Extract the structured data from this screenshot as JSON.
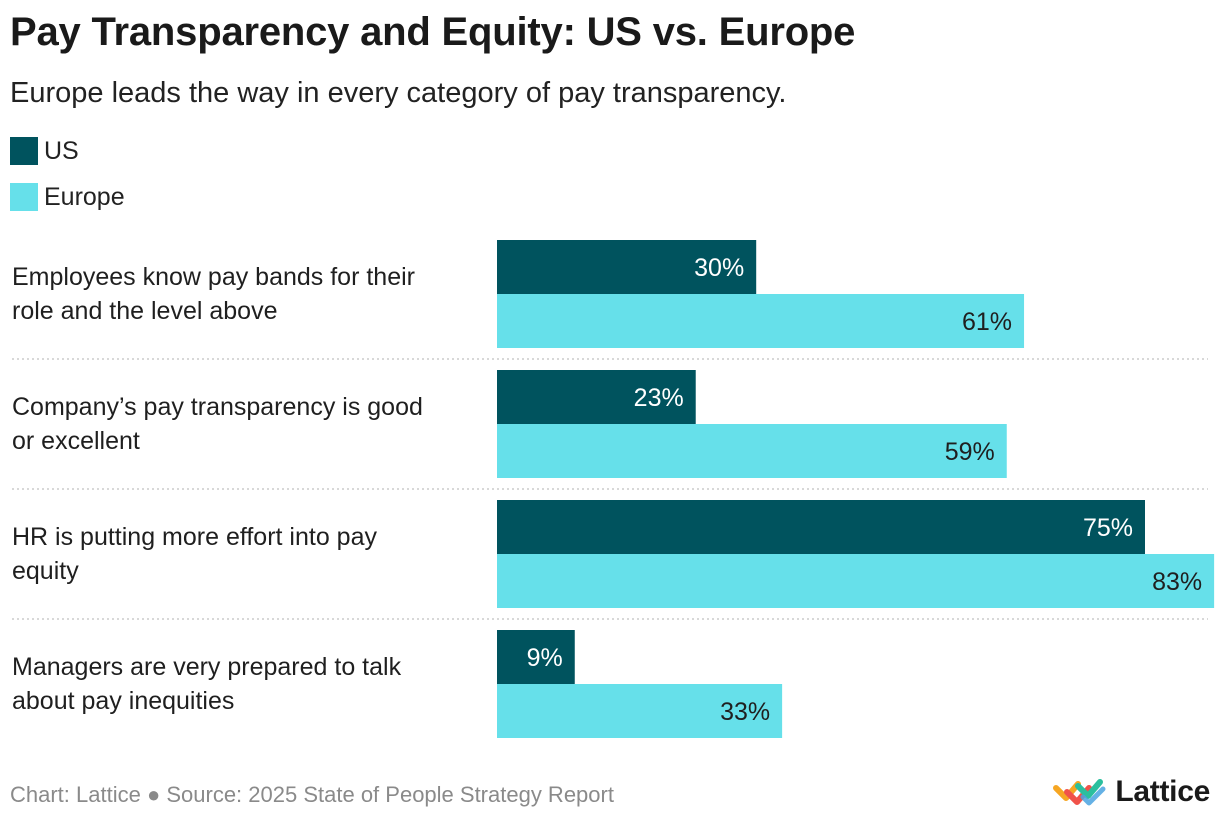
{
  "header": {
    "title": "Pay Transparency and Equity: US vs. Europe",
    "subtitle": "Europe leads the way in every category of pay transparency."
  },
  "colors": {
    "us": "#00535e",
    "europe": "#66e0ea",
    "us_label": "#ffffff",
    "europe_label": "#1f1f1f",
    "separator": "#cccccc"
  },
  "chart_data": {
    "type": "bar",
    "orientation": "horizontal",
    "title": "Pay Transparency and Equity: US vs. Europe",
    "subtitle": "Europe leads the way in every category of pay transparency.",
    "categories": [
      [
        "Employees know pay bands for their",
        "role and the level above"
      ],
      [
        "Company’s pay transparency is good",
        "or excellent"
      ],
      [
        "HR is putting more effort into pay",
        "equity"
      ],
      [
        "Managers are very prepared to talk",
        "about pay inequities"
      ]
    ],
    "series": [
      {
        "name": "US",
        "values": [
          30,
          23,
          75,
          9
        ]
      },
      {
        "name": "Europe",
        "values": [
          61,
          59,
          83,
          33
        ]
      }
    ],
    "value_suffix": "%",
    "xlim": [
      0,
      83
    ],
    "legend_position": "top-left",
    "grid": false
  },
  "footer": {
    "source": "Chart: Lattice ● Source: 2025 State of People Strategy Report",
    "brand": "Lattice"
  },
  "icons": {
    "brand_logo": "lattice-logo-icon"
  }
}
